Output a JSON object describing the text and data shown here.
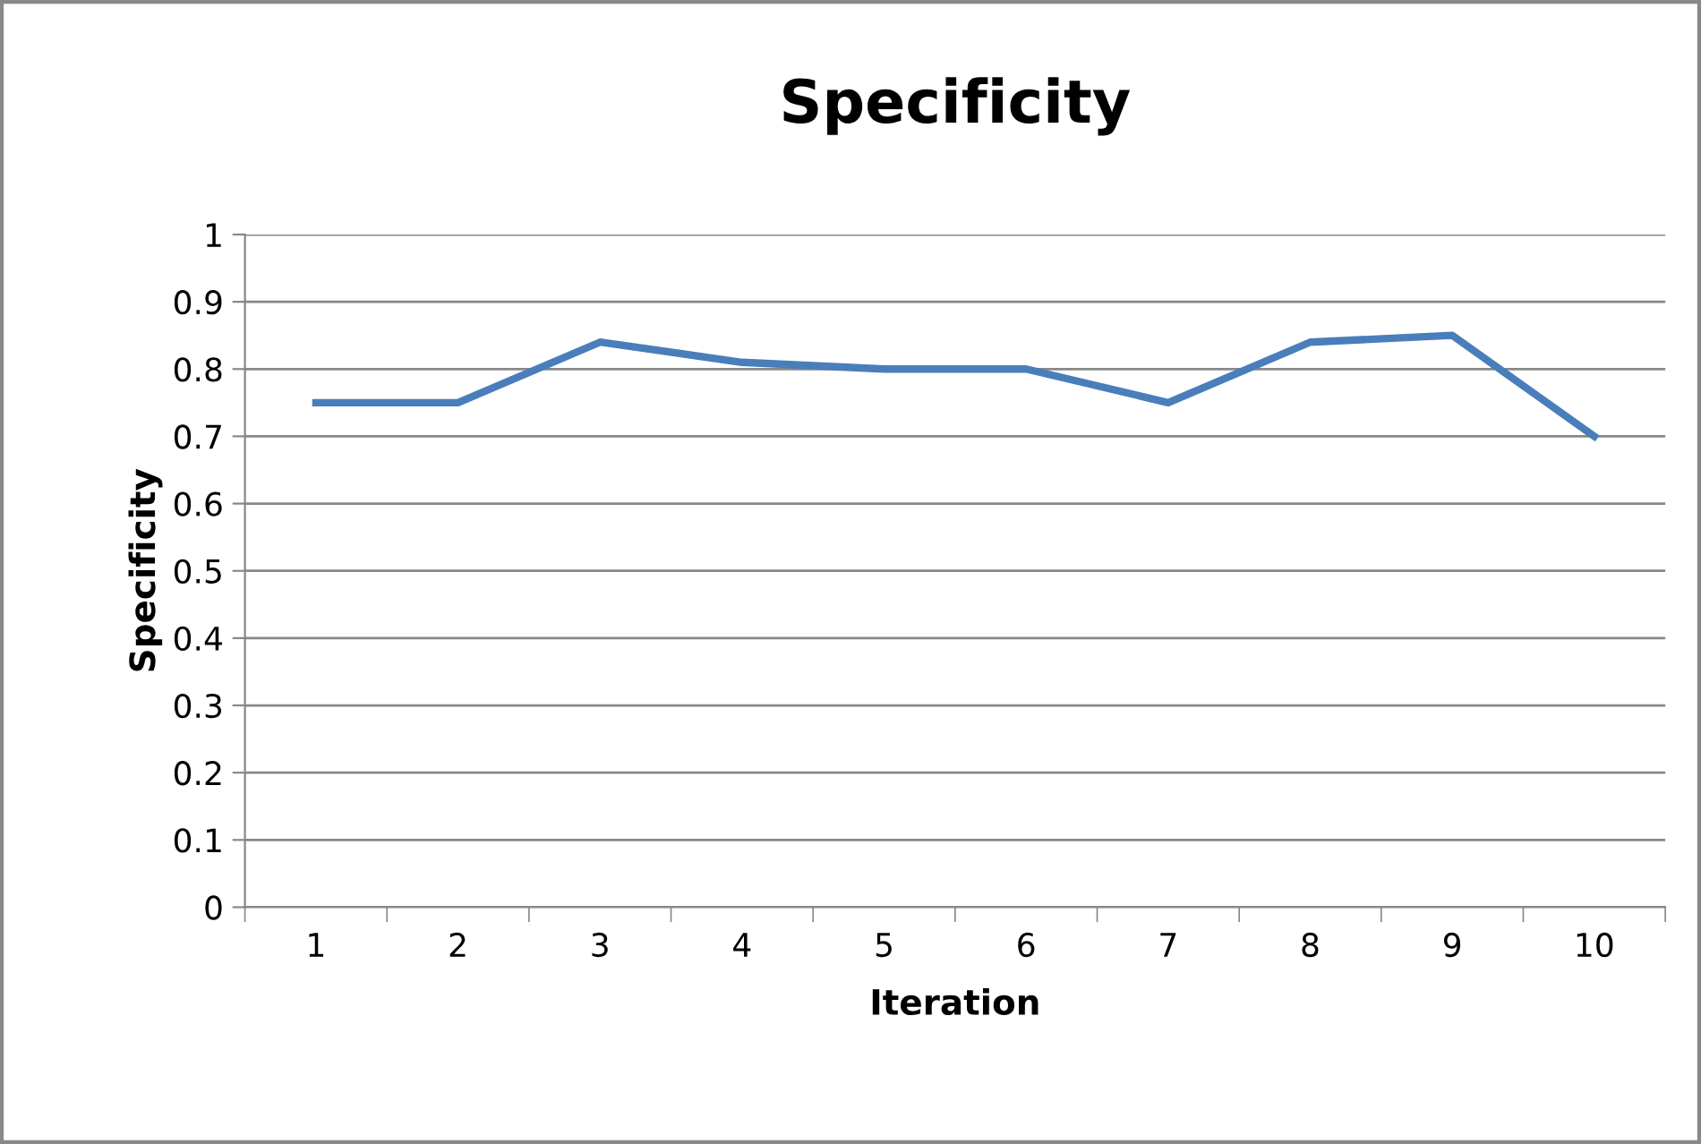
{
  "chart_data": {
    "type": "line",
    "title": "Specificity",
    "xlabel": "Iteration",
    "ylabel": "Specificity",
    "categories": [
      "1",
      "2",
      "3",
      "4",
      "5",
      "6",
      "7",
      "8",
      "9",
      "10"
    ],
    "series": [
      {
        "color": "#4a7ebb",
        "values": [
          0.75,
          0.75,
          0.84,
          0.81,
          0.8,
          0.8,
          0.75,
          0.84,
          0.85,
          0.7
        ]
      }
    ],
    "ylim": [
      0,
      1
    ],
    "yticks": [
      0,
      0.1,
      0.2,
      0.3,
      0.4,
      0.5,
      0.6,
      0.7,
      0.8,
      0.9,
      1
    ],
    "grid": "y",
    "legend": false,
    "marker": "none",
    "line_style": "solid"
  }
}
